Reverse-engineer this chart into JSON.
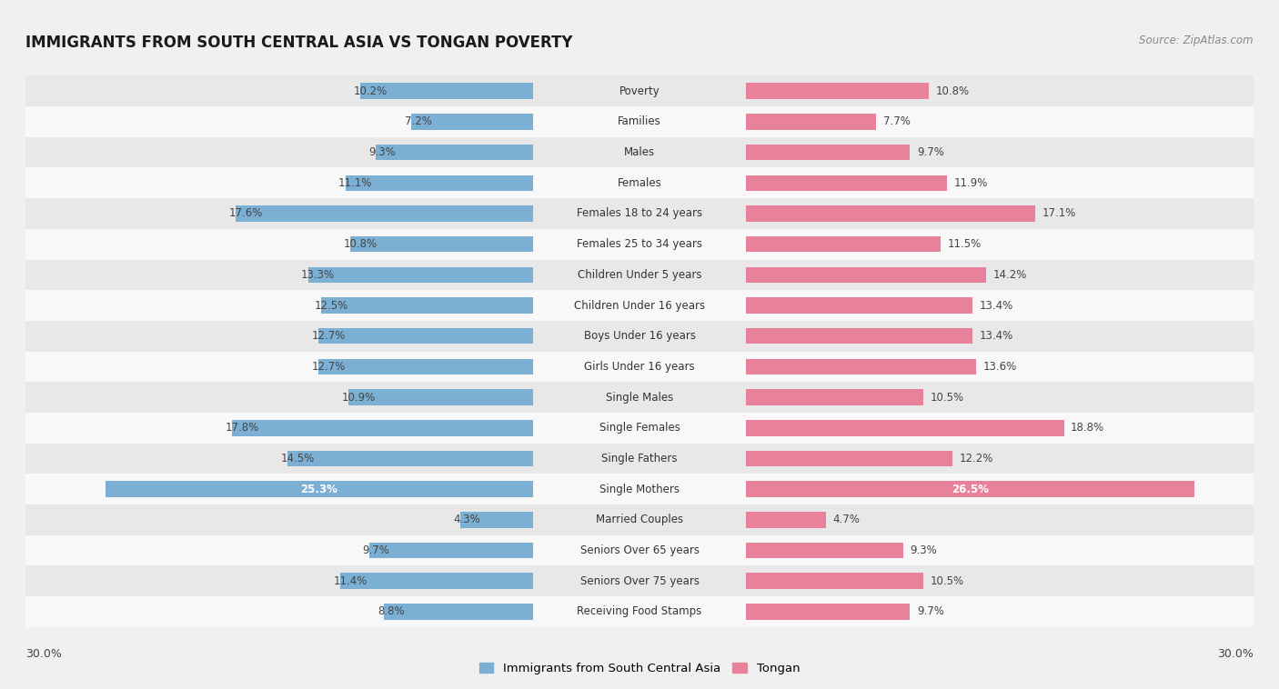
{
  "title": "IMMIGRANTS FROM SOUTH CENTRAL ASIA VS TONGAN POVERTY",
  "source": "Source: ZipAtlas.com",
  "categories": [
    "Poverty",
    "Families",
    "Males",
    "Females",
    "Females 18 to 24 years",
    "Females 25 to 34 years",
    "Children Under 5 years",
    "Children Under 16 years",
    "Boys Under 16 years",
    "Girls Under 16 years",
    "Single Males",
    "Single Females",
    "Single Fathers",
    "Single Mothers",
    "Married Couples",
    "Seniors Over 65 years",
    "Seniors Over 75 years",
    "Receiving Food Stamps"
  ],
  "left_values": [
    10.2,
    7.2,
    9.3,
    11.1,
    17.6,
    10.8,
    13.3,
    12.5,
    12.7,
    12.7,
    10.9,
    17.8,
    14.5,
    25.3,
    4.3,
    9.7,
    11.4,
    8.8
  ],
  "right_values": [
    10.8,
    7.7,
    9.7,
    11.9,
    17.1,
    11.5,
    14.2,
    13.4,
    13.4,
    13.6,
    10.5,
    18.8,
    12.2,
    26.5,
    4.7,
    9.3,
    10.5,
    9.7
  ],
  "left_color": "#7bafd4",
  "right_color": "#e8829a",
  "bar_height": 0.52,
  "x_max": 30.0,
  "legend_left": "Immigrants from South Central Asia",
  "legend_right": "Tongan",
  "background_color": "#f0f0f0",
  "row_colors": [
    "#e8e8e8",
    "#f8f8f8"
  ],
  "label_inside_threshold": 20.0,
  "cat_label_fontsize": 8.5,
  "val_label_fontsize": 8.5,
  "title_fontsize": 12,
  "source_fontsize": 8.5
}
